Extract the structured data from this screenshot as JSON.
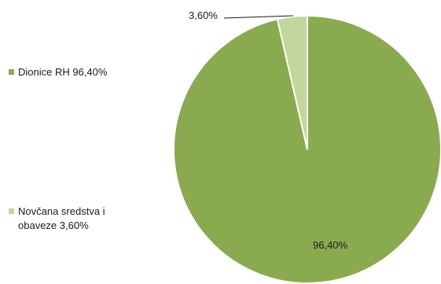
{
  "chart_data": {
    "type": "pie",
    "title": "",
    "series": [
      {
        "label": "Dionice RH",
        "value": 96.4,
        "display": "96,40%",
        "color": "#8aaa4f"
      },
      {
        "label": "Novčana sredstva i obaveze",
        "value": 3.6,
        "display": "3,60%",
        "color": "#c3d69b"
      }
    ],
    "legend": {
      "placement": "left",
      "items": [
        "Dionice RH 96,40%",
        "Novčana sredstva i obaveze 3,60%"
      ]
    },
    "data_labels": [
      "96,40%",
      "3,60%"
    ],
    "start_angle": "top, clockwise"
  }
}
